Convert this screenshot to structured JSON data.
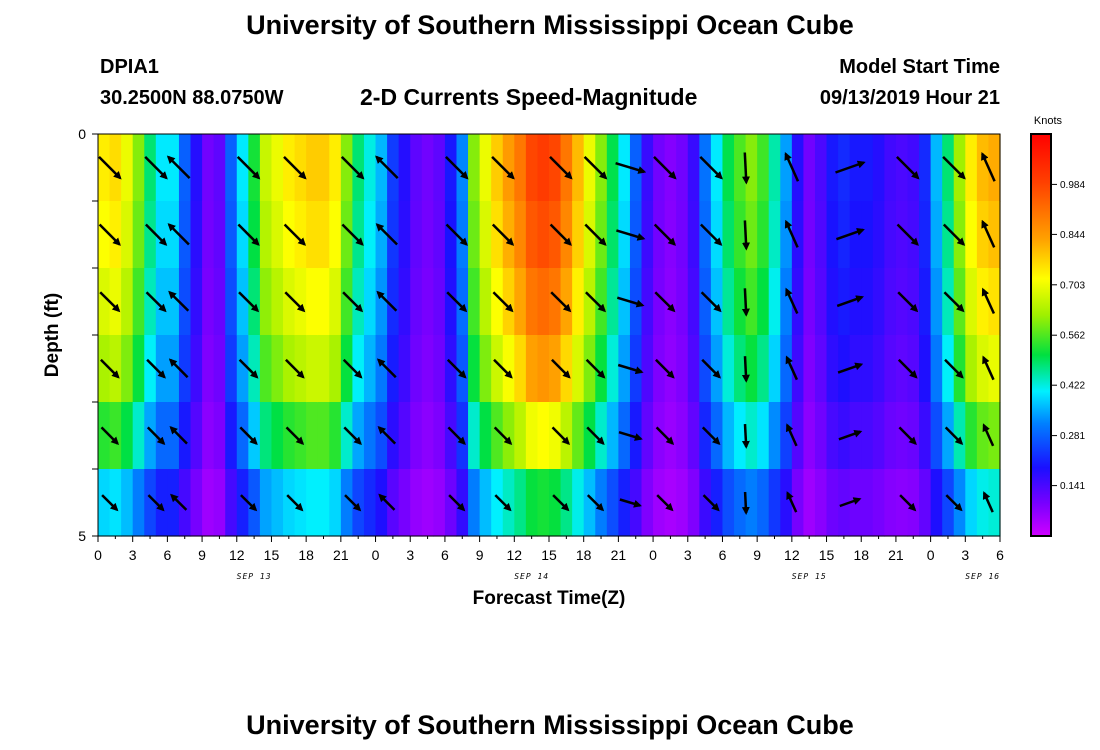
{
  "header": {
    "title": "University of Southern Mississippi Ocean Cube",
    "station_id": "DPIA1",
    "coordinates": "30.2500N 88.0750W",
    "model_start_label": "Model Start Time",
    "model_start_value": "09/13/2019 Hour 21"
  },
  "footer": {
    "title": "University of Southern Mississippi Ocean Cube"
  },
  "chart_data": {
    "type": "heatmap",
    "title": "2-D Currents Speed-Magnitude",
    "xlabel": "Forecast Time(Z)",
    "ylabel": "Depth (ft)",
    "x_tick_labels": [
      "0",
      "3",
      "6",
      "9",
      "12",
      "15",
      "18",
      "21",
      "0",
      "3",
      "6",
      "9",
      "12",
      "15",
      "18",
      "21",
      "0",
      "3",
      "6",
      "9",
      "12",
      "15",
      "18",
      "21",
      "0",
      "3",
      "6"
    ],
    "date_labels": [
      {
        "label": "SEP 13",
        "tick_index": 4.5
      },
      {
        "label": "SEP 14",
        "tick_index": 12.5
      },
      {
        "label": "SEP 15",
        "tick_index": 20.5
      },
      {
        "label": "SEP 16",
        "tick_index": 25.5
      }
    ],
    "y_tick_labels": [
      "0",
      "5"
    ],
    "ylim": [
      0,
      5
    ],
    "x_hours_start": 0,
    "x_hours_end": 78,
    "depth_levels": 5,
    "colorbar": {
      "unit": "Knots",
      "min": 0.0,
      "max": 1.125,
      "tick_values": [
        "0.141",
        "0.281",
        "0.422",
        "0.562",
        "0.703",
        "0.844",
        "0.984"
      ]
    },
    "speed_profile_hours": [
      0,
      1,
      2,
      3,
      4,
      5,
      6,
      7,
      8,
      9,
      10,
      11,
      12,
      13,
      14,
      15,
      16,
      17,
      18,
      19,
      20,
      21,
      22,
      23,
      24,
      25,
      26,
      27,
      28,
      29,
      30,
      31,
      32,
      33,
      34,
      35,
      36,
      37,
      38,
      39,
      40,
      41,
      42,
      43,
      44,
      45,
      46,
      47,
      48,
      49,
      50,
      51,
      52,
      53,
      54,
      55,
      56,
      57,
      58,
      59,
      60,
      61,
      62,
      63,
      64,
      65,
      66,
      67,
      68,
      69,
      70,
      71,
      72,
      73,
      74,
      75,
      76,
      77,
      78
    ],
    "surface_speed_knots": [
      0.74,
      0.76,
      0.7,
      0.6,
      0.48,
      0.4,
      0.4,
      0.28,
      0.18,
      0.1,
      0.12,
      0.28,
      0.4,
      0.52,
      0.66,
      0.7,
      0.74,
      0.76,
      0.78,
      0.78,
      0.74,
      0.6,
      0.48,
      0.42,
      0.36,
      0.24,
      0.18,
      0.12,
      0.1,
      0.12,
      0.2,
      0.32,
      0.6,
      0.7,
      0.78,
      0.84,
      0.9,
      0.98,
      1.0,
      0.98,
      0.9,
      0.8,
      0.7,
      0.6,
      0.5,
      0.4,
      0.28,
      0.16,
      0.1,
      0.08,
      0.1,
      0.16,
      0.3,
      0.4,
      0.5,
      0.56,
      0.6,
      0.55,
      0.45,
      0.34,
      0.18,
      0.1,
      0.14,
      0.2,
      0.22,
      0.2,
      0.2,
      0.18,
      0.15,
      0.14,
      0.15,
      0.22,
      0.36,
      0.48,
      0.62,
      0.74,
      0.8,
      0.82,
      0.78
    ],
    "depth_attenuation": [
      1.0,
      0.97,
      0.92,
      0.85,
      0.72,
      0.52
    ],
    "current_vectors": [
      {
        "hour": 1,
        "direction": "SE"
      },
      {
        "hour": 5,
        "direction": "SE"
      },
      {
        "hour": 7,
        "direction": "NW"
      },
      {
        "hour": 13,
        "direction": "SE"
      },
      {
        "hour": 17,
        "direction": "SE"
      },
      {
        "hour": 22,
        "direction": "SE"
      },
      {
        "hour": 25,
        "direction": "NW"
      },
      {
        "hour": 31,
        "direction": "SE"
      },
      {
        "hour": 35,
        "direction": "SE"
      },
      {
        "hour": 40,
        "direction": "SE"
      },
      {
        "hour": 43,
        "direction": "SE"
      },
      {
        "hour": 46,
        "direction": "ESE"
      },
      {
        "hour": 49,
        "direction": "SE"
      },
      {
        "hour": 53,
        "direction": "SE"
      },
      {
        "hour": 56,
        "direction": "S"
      },
      {
        "hour": 60,
        "direction": "NNW"
      },
      {
        "hour": 65,
        "direction": "ENE"
      },
      {
        "hour": 70,
        "direction": "SE"
      },
      {
        "hour": 74,
        "direction": "SE"
      },
      {
        "hour": 77,
        "direction": "NNW"
      }
    ]
  }
}
